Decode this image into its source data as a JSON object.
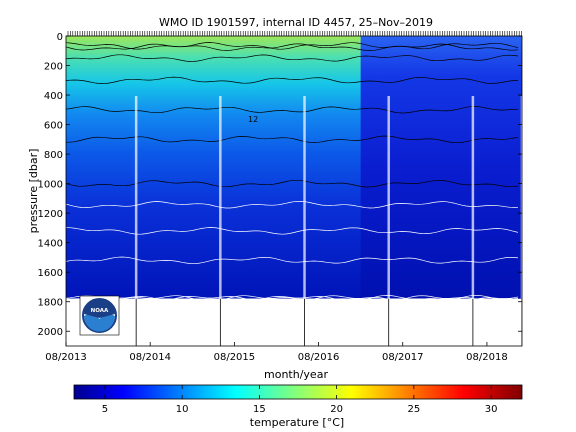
{
  "chart_data": {
    "type": "heatmap",
    "title": "WMO ID 1901597, internal ID 4457, 25–Nov–2019",
    "xlabel": "month/year",
    "ylabel": "pressure [dbar]",
    "colorbar_label": "temperature [°C]",
    "x_tick_labels": [
      "08/2013",
      "08/2014",
      "08/2015",
      "08/2016",
      "08/2017",
      "08/2018"
    ],
    "x_range": [
      "2013-08",
      "2019-01"
    ],
    "y_ticks": [
      0,
      200,
      400,
      600,
      800,
      1000,
      1200,
      1400,
      1600,
      1800,
      2000
    ],
    "y_range": [
      0,
      2100
    ],
    "y_reversed": true,
    "data_max_pressure": 1780,
    "colorbar_ticks": [
      5,
      10,
      15,
      20,
      25,
      30
    ],
    "color_range": [
      3,
      32
    ],
    "colormap": "jet",
    "contour_levels_black": [
      6,
      8,
      10,
      12,
      14,
      16,
      18
    ],
    "contour_levels_white": [
      3,
      3.5,
      4,
      4.5,
      5,
      5.5
    ],
    "contour_label_example": "12",
    "annual_marker_dates": [
      "2014-06",
      "2015-06",
      "2016-06",
      "2017-06",
      "2018-06",
      "2019-01"
    ],
    "temperature_profile_typical": [
      {
        "pressure": 0,
        "temperature": 18
      },
      {
        "pressure": 100,
        "temperature": 15
      },
      {
        "pressure": 200,
        "temperature": 13
      },
      {
        "pressure": 300,
        "temperature": 12
      },
      {
        "pressure": 400,
        "temperature": 11
      },
      {
        "pressure": 500,
        "temperature": 10
      },
      {
        "pressure": 600,
        "temperature": 9
      },
      {
        "pressure": 700,
        "temperature": 8
      },
      {
        "pressure": 800,
        "temperature": 7
      },
      {
        "pressure": 900,
        "temperature": 6.5
      },
      {
        "pressure": 1000,
        "temperature": 6
      },
      {
        "pressure": 1200,
        "temperature": 5.3
      },
      {
        "pressure": 1400,
        "temperature": 4.8
      },
      {
        "pressure": 1600,
        "temperature": 4.3
      },
      {
        "pressure": 1780,
        "temperature": 4
      }
    ],
    "cold_period_2017_2018_surface_temperature": 9
  },
  "logo": {
    "text": "NOAA"
  }
}
